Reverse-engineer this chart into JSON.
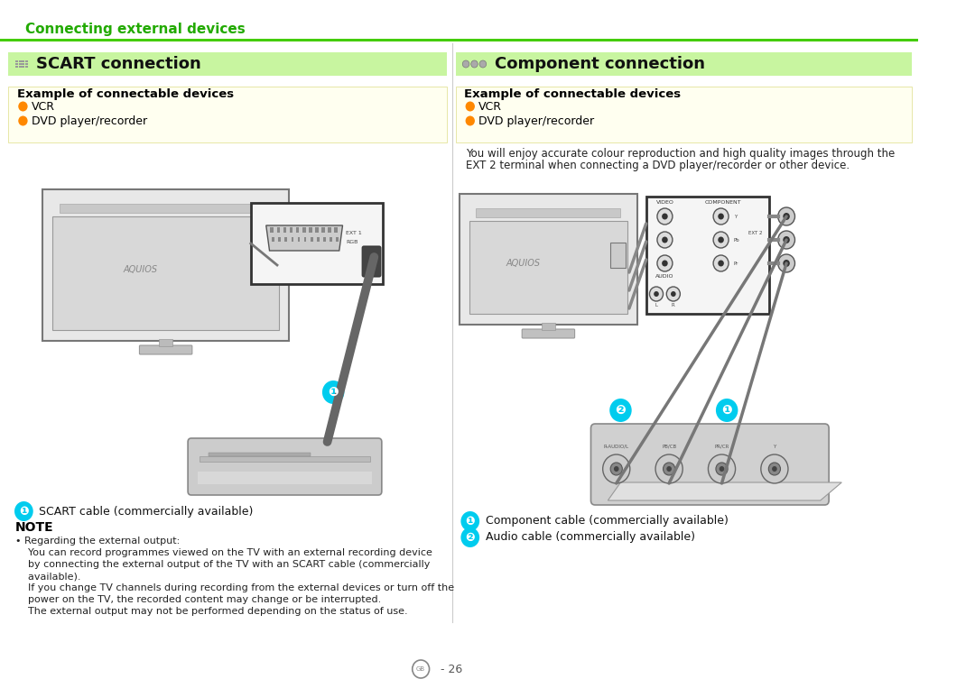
{
  "page_bg": "#ffffff",
  "top_title": "Connecting external devices",
  "top_title_color": "#22aa00",
  "green_line_color": "#44cc00",
  "section_left_title": "SCART connection",
  "section_right_title": "Component connection",
  "section_header_bg": "#c8f5a0",
  "section_header_text_color": "#111111",
  "example_box_bg": "#fffff0",
  "example_box_border": "#dddd88",
  "example_box_title": "Example of connectable devices",
  "bullet_color": "#ff8800",
  "left_bullets": [
    "VCR",
    "DVD player/recorder"
  ],
  "right_bullets": [
    "VCR",
    "DVD player/recorder"
  ],
  "right_description_line1": "You will enjoy accurate colour reproduction and high quality images through the",
  "right_description_line2": "EXT 2 terminal when connecting a DVD player/recorder or other device.",
  "note_title": "NOTE",
  "scart_note": "SCART cable (commercially available)",
  "component_note1": "Component cable (commercially available)",
  "component_note2": "Audio cable (commercially available)",
  "note_text_lines": [
    "• Regarding the external output:",
    "    You can record programmes viewed on the TV with an external recording device",
    "    by connecting the external output of the TV with an SCART cable (commercially",
    "    available).",
    "    If you change TV channels during recording from the external devices or turn off the",
    "    power on the TV, the recorded content may change or be interrupted.",
    "    The external output may not be performed depending on the status of use."
  ],
  "page_number": "GB - 26",
  "circle_color": "#00ccee",
  "tv_frame": "#aaaaaa",
  "tv_body": "#dddddd",
  "tv_inner": "#cccccc",
  "connector_border": "#333333",
  "cable_color": "#555555",
  "device_body": "#cccccc"
}
